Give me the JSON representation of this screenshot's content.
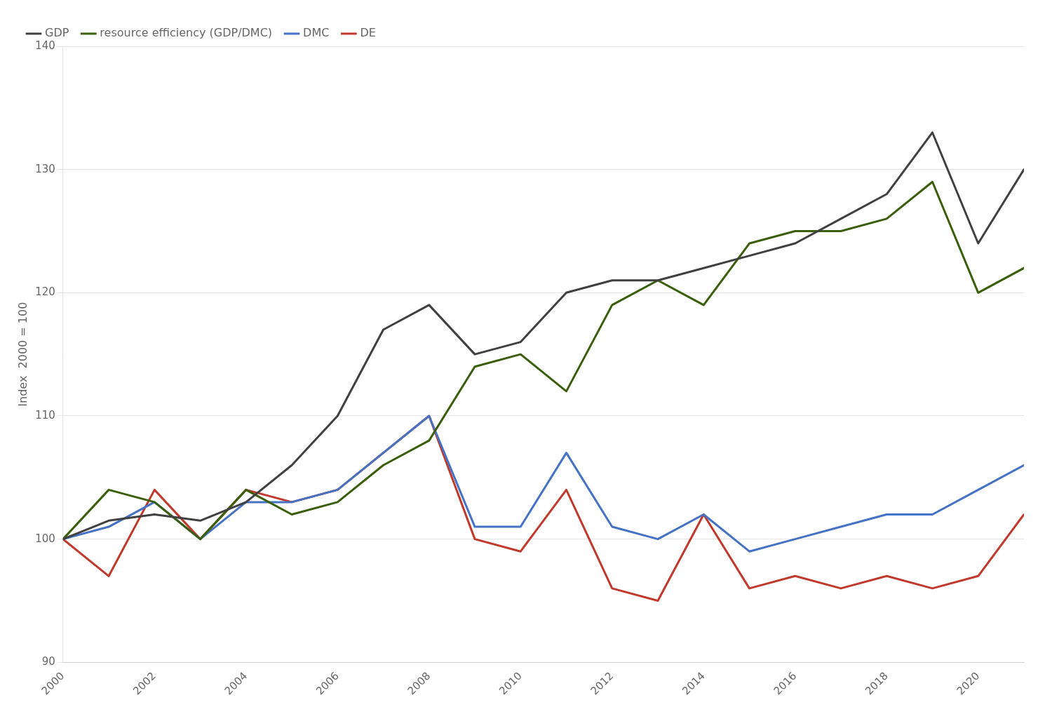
{
  "chart_data": {
    "type": "line",
    "x": [
      2000,
      2001,
      2002,
      2003,
      2004,
      2005,
      2006,
      2007,
      2008,
      2009,
      2010,
      2011,
      2012,
      2013,
      2014,
      2015,
      2016,
      2017,
      2018,
      2019,
      2020,
      2021
    ],
    "series": [
      {
        "name": "GDP",
        "color": "#404040",
        "values": [
          100,
          101.5,
          102,
          101.5,
          103,
          106,
          110,
          117,
          119,
          115,
          116,
          120,
          121,
          121,
          122,
          123,
          124,
          126,
          128,
          133,
          124,
          130
        ]
      },
      {
        "name": "resource efficiency (GDP/DMC)",
        "color": "#3a5f0b",
        "values": [
          100,
          104,
          103,
          100,
          104,
          102,
          103,
          106,
          108,
          114,
          115,
          112,
          119,
          121,
          119,
          124,
          125,
          125,
          126,
          129,
          120,
          122
        ]
      },
      {
        "name": "DMC",
        "color": "#4472c4",
        "values": [
          100,
          101,
          103,
          100,
          103,
          103,
          104,
          107,
          110,
          101,
          101,
          107,
          101,
          100,
          102,
          99,
          100,
          101,
          102,
          102,
          104,
          106
        ]
      },
      {
        "name": "DE",
        "color": "#c0392b",
        "values": [
          100,
          97,
          104,
          100,
          104,
          103,
          104,
          107,
          110,
          100,
          99,
          104,
          96,
          95,
          102,
          96,
          97,
          96,
          97,
          96,
          97,
          102
        ]
      }
    ],
    "xlim": [
      2000,
      2021
    ],
    "xticks": [
      2000,
      2002,
      2004,
      2006,
      2008,
      2010,
      2012,
      2014,
      2016,
      2018,
      2020
    ],
    "ylim": [
      90,
      140
    ],
    "yticks": [
      90,
      100,
      110,
      120,
      130,
      140
    ],
    "y_label": "Index  2000 = 100",
    "grid": "y",
    "legend": "upper left"
  }
}
